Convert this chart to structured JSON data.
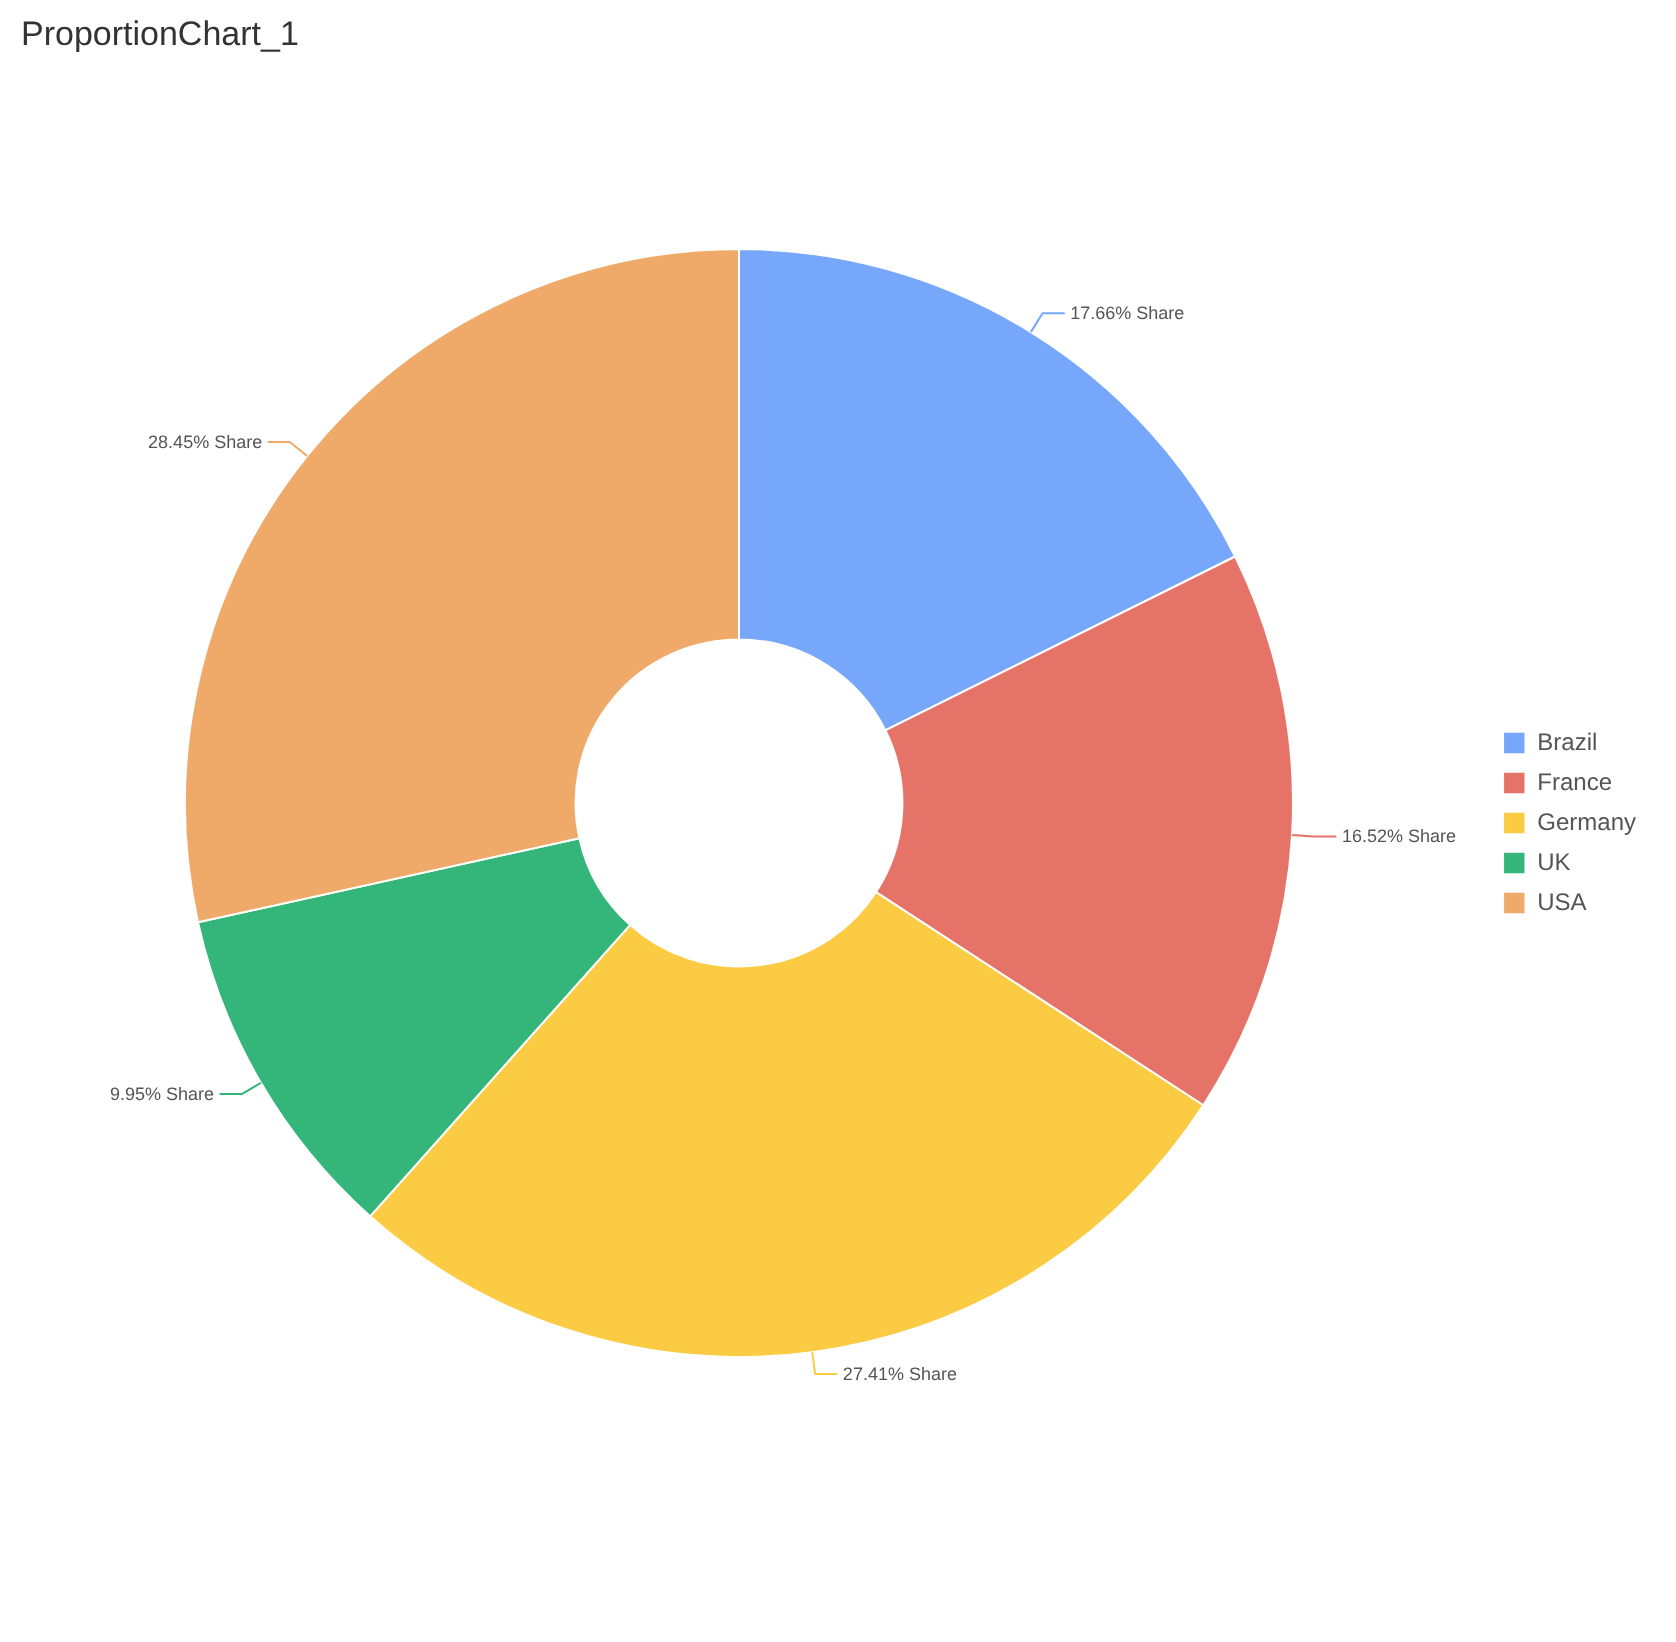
{
  "chart_data": {
    "type": "donut",
    "title": "ProportionChart_1",
    "categories": [
      "Brazil",
      "France",
      "Germany",
      "UK",
      "USA"
    ],
    "values": [
      17.66,
      16.52,
      27.41,
      9.95,
      28.45
    ],
    "colors": [
      "#76a7fa",
      "#e57368",
      "#fbcb43",
      "#34b67a",
      "#efa968"
    ],
    "value_labels": [
      "17.66% Share",
      "16.52% Share",
      "27.41% Share",
      "9.95% Share",
      "28.45% Share"
    ],
    "legend": "right"
  }
}
